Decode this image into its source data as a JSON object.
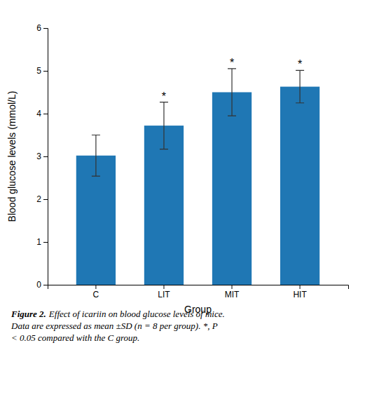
{
  "chart_data": {
    "type": "bar",
    "categories": [
      "C",
      "LIT",
      "MIT",
      "HIT"
    ],
    "values": [
      3.02,
      3.72,
      4.5,
      4.63
    ],
    "errors": [
      0.48,
      0.55,
      0.55,
      0.38
    ],
    "xlabel": "Group",
    "ylabel": "Blood glucose levels (mmol/L)",
    "ylim": [
      0,
      6
    ],
    "yticks": [
      0,
      1,
      2,
      3,
      4,
      5,
      6
    ],
    "grid": false,
    "annotations": [
      {
        "text": "*",
        "category": "LIT"
      },
      {
        "text": "*",
        "category": "MIT"
      },
      {
        "text": "*",
        "category": "HIT"
      }
    ],
    "caption": {
      "label": "Figure 2.",
      "lines": [
        "Effect of icariin on blood glucose levels of mice.",
        "Data are expressed as mean ±SD (n = 8 per group).  *, P",
        "< 0.05 compared with the C group."
      ]
    }
  }
}
